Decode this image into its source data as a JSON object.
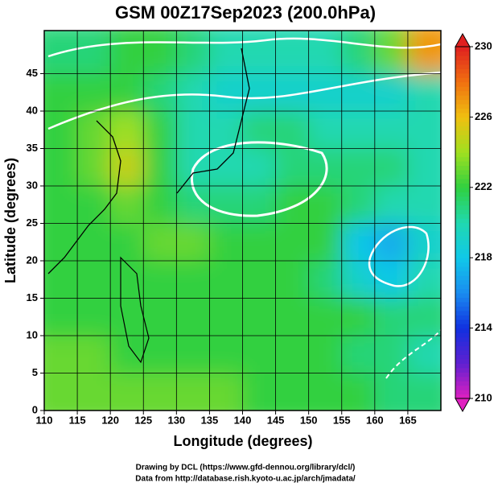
{
  "chart_data": {
    "type": "heatmap",
    "title": "GSM 00Z17Sep2023 (200.0hPa)",
    "x_label": "Longitude (degrees)",
    "y_label": "Latitude (degrees)",
    "xlim": [
      110,
      170
    ],
    "ylim": [
      0,
      50
    ],
    "xticks": [
      110,
      115,
      120,
      125,
      130,
      135,
      140,
      145,
      150,
      155,
      160,
      165
    ],
    "yticks": [
      0,
      5,
      10,
      15,
      20,
      25,
      30,
      35,
      40,
      45
    ],
    "grid": true,
    "x_bins": [
      110,
      115,
      120,
      125,
      130,
      135,
      140,
      145,
      150,
      155,
      160,
      165,
      170
    ],
    "y_bins": [
      50,
      45,
      40,
      35,
      30,
      25,
      20,
      15,
      10,
      5,
      0
    ],
    "values": [
      [
        221,
        221,
        222,
        222,
        221,
        220,
        220,
        220,
        220,
        221,
        223,
        227
      ],
      [
        222,
        222,
        222,
        221,
        220,
        219,
        219,
        219,
        219,
        219,
        219,
        220
      ],
      [
        222,
        223,
        224,
        222,
        220,
        220,
        221,
        221,
        220,
        220,
        220,
        220
      ],
      [
        222,
        223,
        225,
        222,
        220,
        220,
        220,
        221,
        221,
        221,
        221,
        220
      ],
      [
        222,
        222,
        223,
        222,
        221,
        221,
        221,
        222,
        222,
        221,
        220,
        220
      ],
      [
        222,
        222,
        222,
        223,
        223,
        222,
        222,
        222,
        222,
        218,
        217,
        219
      ],
      [
        222,
        222,
        222,
        222,
        222,
        222,
        222,
        222,
        221,
        219,
        218,
        220
      ],
      [
        222,
        222,
        222,
        222,
        222,
        222,
        222,
        222,
        222,
        222,
        221,
        221
      ],
      [
        223,
        223,
        222,
        222,
        222,
        222,
        222,
        222,
        222,
        221,
        221,
        220
      ],
      [
        223,
        223,
        223,
        223,
        223,
        223,
        222,
        222,
        222,
        222,
        221,
        221
      ]
    ],
    "colorbar": {
      "lim": [
        210,
        230
      ],
      "ticks": [
        210,
        214,
        218,
        222,
        226,
        230
      ],
      "colormap": [
        "#e020c0",
        "#6020d0",
        "#1030e0",
        "#1a8cf0",
        "#10c8e8",
        "#20d8b0",
        "#30d040",
        "#a0e020",
        "#f0c010",
        "#f07010",
        "#e02020"
      ]
    },
    "footer": [
      "Drawing by DCL (https://www.gfd-dennou.org/library/dcl/)",
      "Data from http://database.rish.kyoto-u.ac.jp/arch/jmadata/"
    ]
  }
}
